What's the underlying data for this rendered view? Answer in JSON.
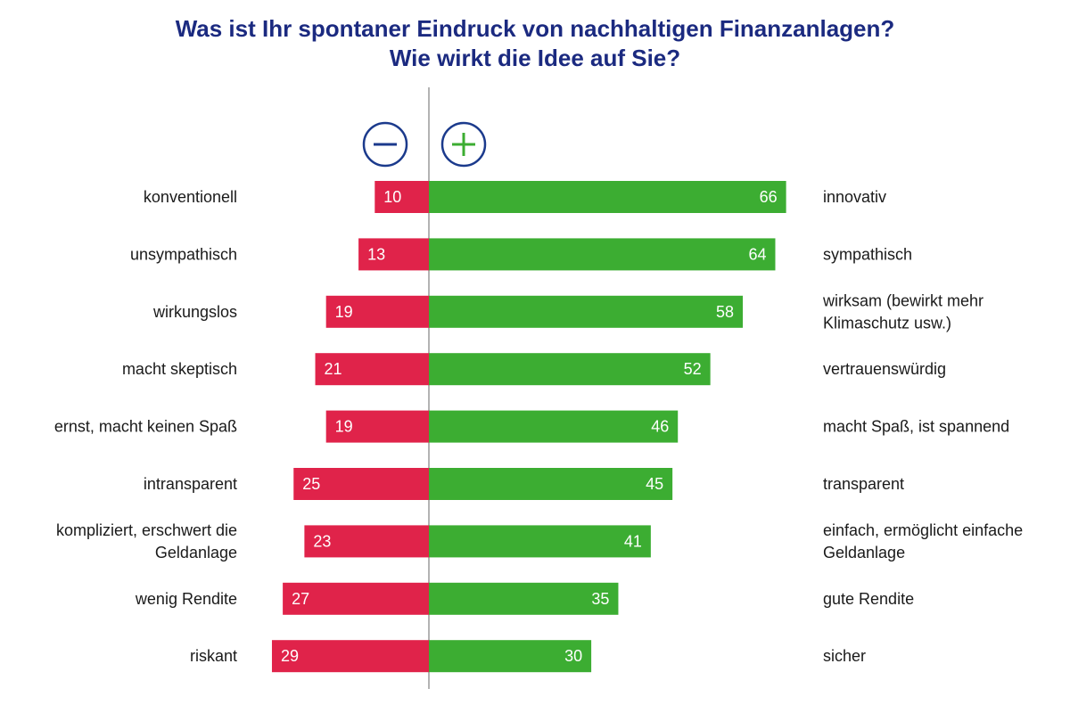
{
  "chart_data": {
    "type": "bar",
    "title": "Was ist Ihr spontaner Eindruck von nachhaltigen Finanzanlagen?",
    "subtitle": "Wie wirkt die Idee auf Sie?",
    "negative_symbol": "minus-icon",
    "positive_symbol": "plus-icon",
    "colors": {
      "negative": "#e0234a",
      "positive": "#3cad32",
      "title": "#1b2a80",
      "minus_circle": "#1b3a8c",
      "plus_circle": "#1b3a8c",
      "plus_sign": "#3cad32",
      "axis": "#9a9a9a"
    },
    "rows": [
      {
        "negative_label": [
          "konventionell"
        ],
        "negative_value": 10,
        "positive_label": [
          "innovativ"
        ],
        "positive_value": 66
      },
      {
        "negative_label": [
          "unsympathisch"
        ],
        "negative_value": 13,
        "positive_label": [
          "sympathisch"
        ],
        "positive_value": 64
      },
      {
        "negative_label": [
          "wirkungslos"
        ],
        "negative_value": 19,
        "positive_label": [
          "wirksam (bewirkt mehr",
          "Klimaschutz usw.)"
        ],
        "positive_value": 58
      },
      {
        "negative_label": [
          "macht skeptisch"
        ],
        "negative_value": 21,
        "positive_label": [
          "vertrauenswürdig"
        ],
        "positive_value": 52
      },
      {
        "negative_label": [
          "ernst, macht keinen Spaß"
        ],
        "negative_value": 19,
        "positive_label": [
          "macht Spaß, ist spannend"
        ],
        "positive_value": 46
      },
      {
        "negative_label": [
          "intransparent"
        ],
        "negative_value": 25,
        "positive_label": [
          "transparent"
        ],
        "positive_value": 45
      },
      {
        "negative_label": [
          "kompliziert, erschwert die",
          "Geldanlage"
        ],
        "negative_value": 23,
        "positive_label": [
          "einfach, ermöglicht einfache",
          "Geldanlage"
        ],
        "positive_value": 41
      },
      {
        "negative_label": [
          "wenig Rendite"
        ],
        "negative_value": 27,
        "positive_label": [
          "gute Rendite"
        ],
        "positive_value": 35
      },
      {
        "negative_label": [
          "riskant"
        ],
        "negative_value": 29,
        "positive_label": [
          "sicher"
        ],
        "positive_value": 30
      }
    ]
  }
}
